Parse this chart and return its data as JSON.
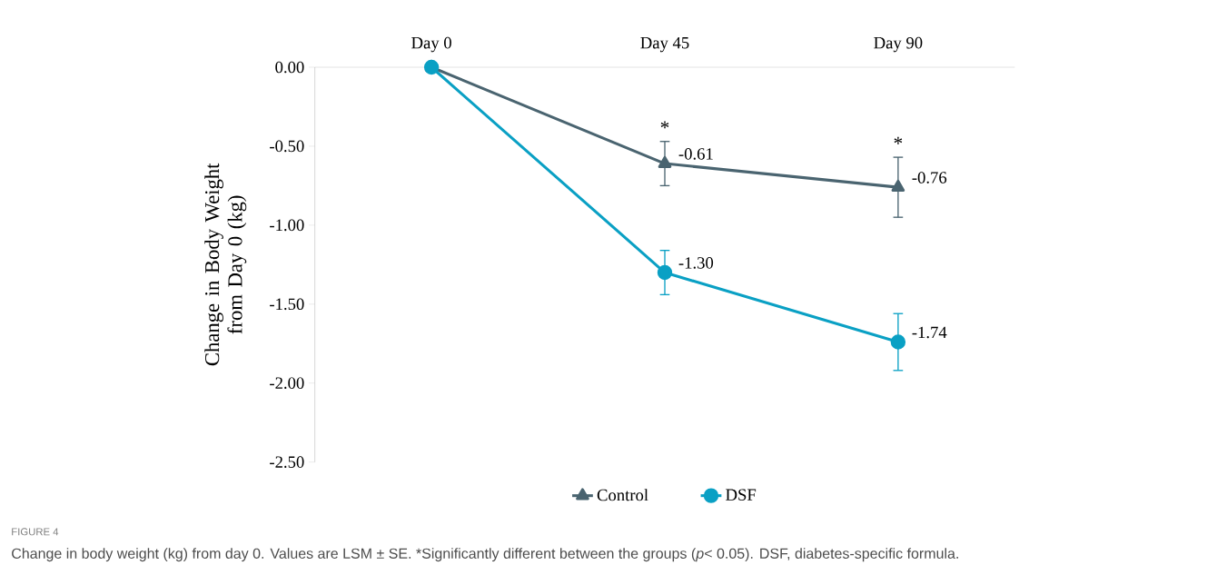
{
  "chart_data": {
    "type": "line",
    "ylabel": "Change in Body Weight from Day 0 (kg)",
    "categories": [
      "Day 0",
      "Day 45",
      "Day 90"
    ],
    "ylim": [
      -2.5,
      0
    ],
    "yticks": [
      {
        "value": 0,
        "label": "0.00"
      },
      {
        "value": -0.5,
        "label": "-0.50"
      },
      {
        "value": -1,
        "label": "-1.00"
      },
      {
        "value": -1.5,
        "label": "-1.50"
      },
      {
        "value": -2,
        "label": "-2.00"
      },
      {
        "value": -2.5,
        "label": "-2.50"
      }
    ],
    "series": [
      {
        "name": "Control",
        "color": "#4a6470",
        "marker": "triangle",
        "values": [
          0,
          -0.61,
          -0.76
        ],
        "errors": [
          null,
          0.14,
          0.19
        ],
        "value_labels": [
          null,
          "-0.61",
          "-0.76"
        ]
      },
      {
        "name": "DSF",
        "color": "#0aa0c4",
        "marker": "circle",
        "values": [
          0,
          -1.3,
          -1.74
        ],
        "errors": [
          null,
          0.14,
          0.18
        ],
        "value_labels": [
          null,
          "-1.30",
          "-1.74"
        ]
      }
    ],
    "legend": "bottom",
    "annotations": [
      "*",
      "*",
      "FIGURE 4",
      "Change in body weight (kg) from day 0. Values are LSM ± SE. *Significantly different between the groups (*p*< 0.05). DSF, diabetes-specific formula."
    ]
  }
}
